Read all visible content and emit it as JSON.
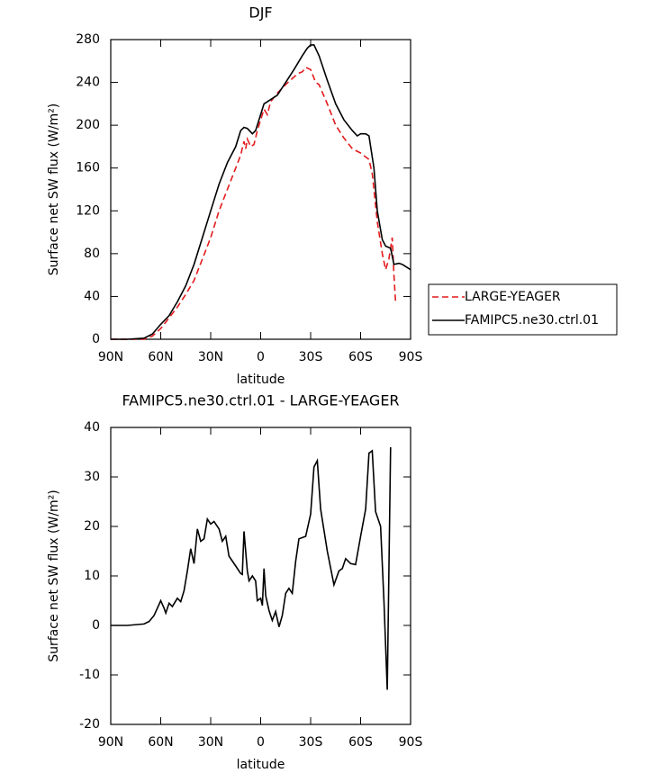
{
  "chart_data": [
    {
      "type": "line",
      "title": "DJF",
      "x_label": "latitude",
      "y_label": "Surface net SW flux (W/m²)",
      "xlim": [
        90,
        -90
      ],
      "xticks": [
        {
          "value": 90,
          "label": "90N"
        },
        {
          "value": 60,
          "label": "60N"
        },
        {
          "value": 30,
          "label": "30N"
        },
        0,
        {
          "value": -30,
          "label": "30S"
        },
        {
          "value": -60,
          "label": "60S"
        },
        {
          "value": -90,
          "label": "90S"
        }
      ],
      "ylim": [
        0,
        280
      ],
      "yticks": [
        0,
        40,
        80,
        120,
        160,
        200,
        240,
        280
      ],
      "legend": "right",
      "series": [
        {
          "name": "LARGE-YEAGER",
          "color": "#e31a1c",
          "line_style": "dashed",
          "x": [
            90,
            80,
            70,
            65,
            60,
            55,
            50,
            45,
            40,
            35,
            30,
            25,
            20,
            15,
            12,
            10,
            9,
            8,
            6,
            4,
            2,
            0,
            -2,
            -4,
            -6,
            -10,
            -15,
            -20,
            -22,
            -25,
            -27,
            -30,
            -33,
            -35,
            -40,
            -45,
            -50,
            -55,
            -60,
            -65,
            -67,
            -70,
            -73,
            -75,
            -77,
            -78,
            -79,
            -80,
            -81
          ],
          "values": [
            0,
            0,
            0,
            3,
            10,
            20,
            30,
            42,
            55,
            75,
            95,
            120,
            140,
            160,
            172,
            185,
            178,
            187,
            180,
            182,
            195,
            205,
            215,
            210,
            222,
            230,
            238,
            245,
            248,
            250,
            254,
            252,
            240,
            238,
            220,
            200,
            188,
            178,
            174,
            168,
            155,
            110,
            80,
            65,
            75,
            85,
            95,
            60,
            35
          ]
        },
        {
          "name": "FAMIPC5.ne30.ctrl.01",
          "color": "#000000",
          "line_style": "solid",
          "x": [
            90,
            80,
            70,
            65,
            60,
            55,
            50,
            45,
            40,
            35,
            30,
            25,
            20,
            15,
            12,
            10,
            8,
            5,
            3,
            0,
            -2,
            -5,
            -10,
            -15,
            -20,
            -25,
            -28,
            -30,
            -32,
            -35,
            -40,
            -45,
            -50,
            -55,
            -58,
            -60,
            -63,
            -65,
            -68,
            -70,
            -73,
            -75,
            -78,
            -80,
            -83,
            -85,
            -88,
            -90
          ],
          "values": [
            0,
            0,
            1,
            5,
            14,
            22,
            35,
            50,
            70,
            95,
            120,
            145,
            165,
            180,
            195,
            198,
            197,
            192,
            195,
            210,
            220,
            223,
            228,
            240,
            252,
            265,
            272,
            275,
            275,
            265,
            242,
            220,
            205,
            195,
            190,
            192,
            192,
            190,
            160,
            120,
            93,
            87,
            85,
            70,
            71,
            70,
            67,
            65
          ]
        }
      ]
    },
    {
      "type": "line",
      "title": "FAMIPC5.ne30.ctrl.01 - LARGE-YEAGER",
      "x_label": "latitude",
      "y_label": "Surface net SW flux (W/m²)",
      "xlim": [
        90,
        -90
      ],
      "xticks": [
        {
          "value": 90,
          "label": "90N"
        },
        {
          "value": 60,
          "label": "60N"
        },
        {
          "value": 30,
          "label": "30N"
        },
        0,
        {
          "value": -30,
          "label": "30S"
        },
        {
          "value": -60,
          "label": "60S"
        },
        {
          "value": -90,
          "label": "90S"
        }
      ],
      "ylim": [
        -20,
        40
      ],
      "yticks": [
        -20,
        -10,
        0,
        10,
        20,
        30,
        40
      ],
      "color": "#000000",
      "x": [
        90,
        80,
        70,
        67,
        64,
        62,
        60,
        58,
        57,
        55,
        53,
        50,
        48,
        46,
        44,
        42,
        40,
        38,
        36,
        34,
        32,
        30,
        28,
        25,
        23,
        21,
        19,
        15,
        12,
        11,
        10,
        8,
        7,
        5,
        3,
        2,
        0,
        -1,
        -2,
        -3,
        -5,
        -7,
        -9,
        -11,
        -13,
        -15,
        -17,
        -19,
        -21,
        -23,
        -27,
        -30,
        -32,
        -34,
        -36,
        -40,
        -44,
        -47,
        -49,
        -51,
        -54,
        -57,
        -60,
        -63,
        -65,
        -67,
        -69,
        -72,
        -74,
        -76,
        -78
      ],
      "values": [
        0,
        0,
        0.3,
        0.8,
        2,
        3.5,
        5,
        3.5,
        2.5,
        4.5,
        3.8,
        5.5,
        4.8,
        7,
        11,
        15.5,
        12.5,
        19.5,
        17,
        17.5,
        21.5,
        20.5,
        21,
        19.5,
        17,
        18,
        14,
        12,
        10.5,
        10.3,
        19,
        11,
        9,
        10,
        9,
        5,
        5.5,
        4,
        11.5,
        6,
        3,
        1,
        2.8,
        -0.3,
        2,
        6.5,
        7.5,
        6.5,
        13,
        17.5,
        18,
        22.5,
        32,
        33.3,
        23.5,
        15,
        8.2,
        11,
        11.5,
        13.5,
        12.5,
        12.3,
        18,
        23.5,
        34.8,
        35.3,
        23,
        20,
        5,
        -13,
        36
      ]
    }
  ]
}
